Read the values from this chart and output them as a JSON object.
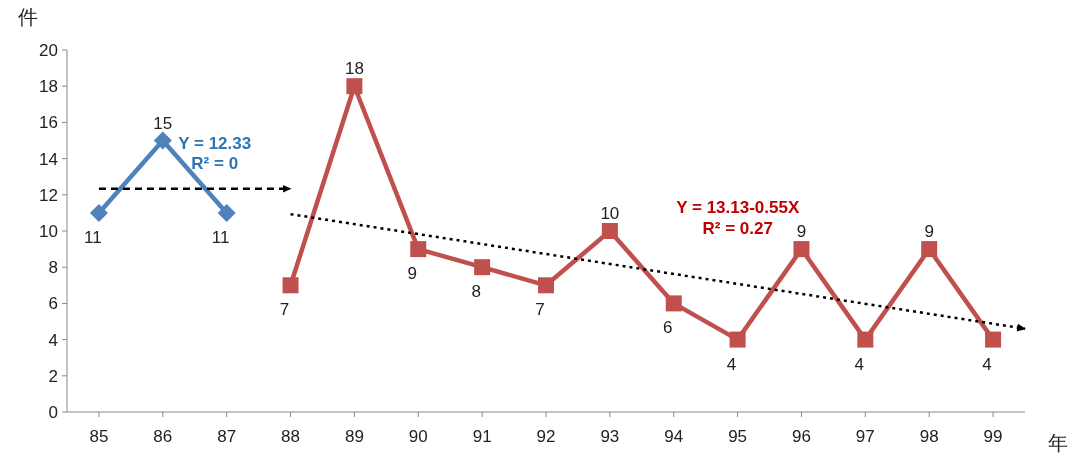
{
  "chart_data": {
    "type": "line",
    "xlabel": "年",
    "ylabel": "件",
    "x": [
      85,
      86,
      87,
      88,
      89,
      90,
      91,
      92,
      93,
      94,
      95,
      96,
      97,
      98,
      99
    ],
    "xlim": [
      84.5,
      99.5
    ],
    "xticks": [
      85,
      86,
      87,
      88,
      89,
      90,
      91,
      92,
      93,
      94,
      95,
      96,
      97,
      98,
      99
    ],
    "ylim": [
      0,
      20
    ],
    "yticks": [
      0,
      2,
      4,
      6,
      8,
      10,
      12,
      14,
      16,
      18,
      20
    ],
    "grid": false,
    "series": [
      {
        "color": "#4f81bd",
        "marker": "diamond",
        "line_style": "solid",
        "values": [
          11,
          15,
          11,
          null,
          null,
          null,
          null,
          null,
          null,
          null,
          null,
          null,
          null,
          null,
          null
        ],
        "value_labels": [
          "11",
          "15",
          "11",
          null,
          null,
          null,
          null,
          null,
          null,
          null,
          null,
          null,
          null,
          null,
          null
        ]
      },
      {
        "color": "#c0504d",
        "marker": "square",
        "line_style": "solid",
        "values": [
          null,
          null,
          null,
          7,
          18,
          9,
          8,
          7,
          10,
          6,
          4,
          9,
          4,
          9,
          4
        ],
        "value_labels": [
          null,
          null,
          null,
          "7",
          "18",
          "9",
          "8",
          "7",
          "10",
          "6",
          "4",
          "9",
          "4",
          "9",
          "4"
        ]
      },
      {
        "name": "Y = 12.33\nR² = 0",
        "color": "#000000",
        "marker": "none",
        "line_style": "dashed",
        "x": [
          85,
          88
        ],
        "values": [
          12.33,
          12.33
        ]
      },
      {
        "name": "Y = 13.13-0.55X\nR² = 0.27",
        "color": "#000000",
        "marker": "none",
        "line_style": "dotted",
        "x": [
          88,
          99.5
        ],
        "values": [
          10.93,
          4.6
        ]
      }
    ]
  }
}
